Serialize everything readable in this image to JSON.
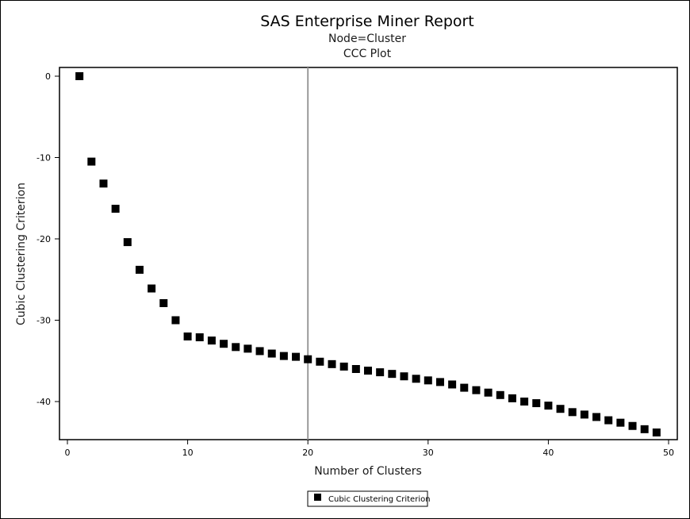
{
  "window": {
    "title": "SAS Enterprise Miner Report",
    "subtitle_1": "Node=Cluster",
    "subtitle_2": "CCC Plot"
  },
  "chart_data": {
    "type": "scatter",
    "title": "SAS Enterprise Miner Report",
    "subtitles": [
      "Node=Cluster",
      "CCC Plot"
    ],
    "xlabel": "Number of Clusters",
    "ylabel": "Cubic Clustering Criterion",
    "xlim": [
      0,
      50
    ],
    "ylim": [
      -44.5,
      1
    ],
    "x_ticks": [
      0,
      10,
      20,
      30,
      40,
      50
    ],
    "y_ticks": [
      0,
      -10,
      -20,
      -30,
      -40
    ],
    "reference_line": {
      "axis": "x",
      "value": 20,
      "color": "#999999"
    },
    "grid": false,
    "legend_position": "bottom-center",
    "marker": "square",
    "marker_color": "#000000",
    "series": [
      {
        "name": "Cubic Clustering Criterion",
        "x": [
          1,
          2,
          3,
          4,
          5,
          6,
          7,
          8,
          9,
          10,
          11,
          12,
          13,
          14,
          15,
          16,
          17,
          18,
          19,
          20,
          21,
          22,
          23,
          24,
          25,
          26,
          27,
          28,
          29,
          30,
          31,
          32,
          33,
          34,
          35,
          36,
          37,
          38,
          39,
          40,
          41,
          42,
          43,
          44,
          45,
          46,
          47,
          48,
          49
        ],
        "y": [
          0,
          -10.5,
          -13.2,
          -16.3,
          -20.4,
          -23.8,
          -26.1,
          -27.9,
          -30,
          -32,
          -32.1,
          -32.5,
          -32.9,
          -33.3,
          -33.5,
          -33.8,
          -34.1,
          -34.4,
          -34.5,
          -34.8,
          -35.1,
          -35.4,
          -35.7,
          -36,
          -36.2,
          -36.4,
          -36.6,
          -36.9,
          -37.2,
          -37.4,
          -37.6,
          -37.9,
          -38.3,
          -38.6,
          -38.9,
          -39.2,
          -39.6,
          -40,
          -40.2,
          -40.5,
          -40.9,
          -41.3,
          -41.6,
          -41.9,
          -42.3,
          -42.6,
          -43,
          -43.4,
          -43.8
        ]
      }
    ]
  }
}
